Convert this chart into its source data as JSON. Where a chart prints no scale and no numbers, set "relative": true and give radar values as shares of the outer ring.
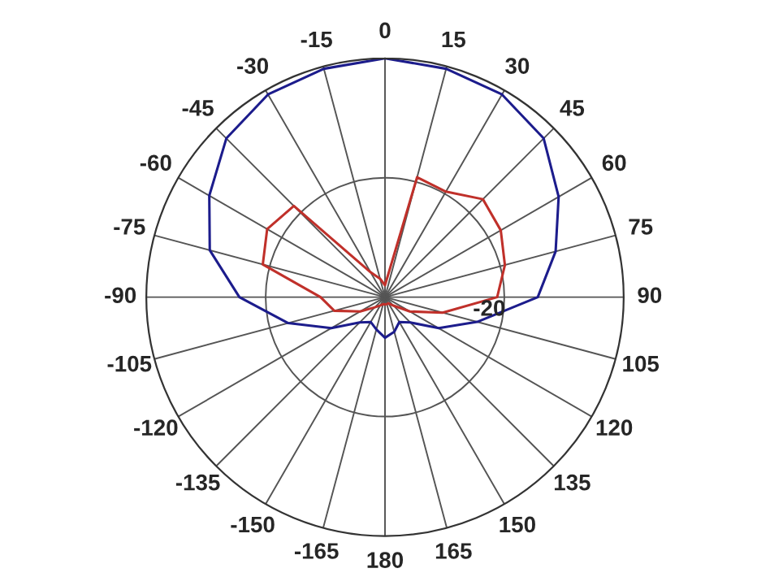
{
  "chart_data": {
    "type": "radar",
    "relative": true,
    "grid": true,
    "categories": [
      "0",
      "15",
      "30",
      "45",
      "60",
      "75",
      "90",
      "105",
      "120",
      "135",
      "150",
      "165",
      "180",
      "-165",
      "-150",
      "-135",
      "-120",
      "-105",
      "-90",
      "-75",
      "-60",
      "-45",
      "-30",
      "-15"
    ],
    "series": [
      {
        "color": "#1c1c8c",
        "values": [
          1.0,
          0.99,
          0.98,
          0.94,
          0.84,
          0.74,
          0.64,
          0.4,
          0.26,
          0.15,
          0.12,
          0.15,
          0.17,
          0.14,
          0.12,
          0.15,
          0.26,
          0.42,
          0.61,
          0.76,
          0.85,
          0.94,
          0.98,
          0.99
        ]
      },
      {
        "color": "#c0302a",
        "values": [
          0.05,
          0.52,
          0.51,
          0.58,
          0.56,
          0.52,
          0.47,
          0.25,
          0.12,
          0.05,
          0.03,
          0.03,
          0.03,
          0.03,
          0.04,
          0.06,
          0.12,
          0.22,
          0.27,
          0.53,
          0.57,
          0.54,
          0.12,
          0.08
        ]
      }
    ],
    "annotations": [
      "-20"
    ]
  }
}
